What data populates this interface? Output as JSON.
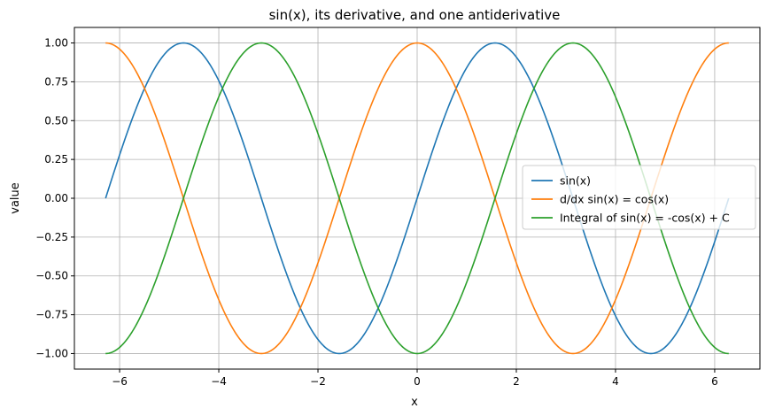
{
  "chart_data": {
    "type": "line",
    "title": "sin(x), its derivative, and one antiderivative",
    "xlabel": "x",
    "ylabel": "value",
    "xlim": [
      -6.912,
      6.912
    ],
    "ylim": [
      -1.1,
      1.1
    ],
    "xticks": [
      -6,
      -4,
      -2,
      0,
      2,
      4,
      6
    ],
    "xtick_labels": [
      "−6",
      "−4",
      "−2",
      "0",
      "2",
      "4",
      "6"
    ],
    "yticks": [
      -1.0,
      -0.75,
      -0.5,
      -0.25,
      0.0,
      0.25,
      0.5,
      0.75,
      1.0
    ],
    "ytick_labels": [
      "−1.00",
      "−0.75",
      "−0.50",
      "−0.25",
      "0.00",
      "0.25",
      "0.50",
      "0.75",
      "1.00"
    ],
    "grid": true,
    "legend_position": "center-right",
    "x_range": [
      -6.283,
      6.283
    ],
    "series": [
      {
        "name": "sin(x)",
        "color": "#1f77b4",
        "points": [
          [
            -6.283,
            0.0
          ],
          [
            -5.498,
            0.707
          ],
          [
            -4.712,
            1.0
          ],
          [
            -3.927,
            0.707
          ],
          [
            -3.142,
            0.0
          ],
          [
            -2.356,
            -0.707
          ],
          [
            -1.571,
            -1.0
          ],
          [
            -0.785,
            -0.707
          ],
          [
            0.0,
            0.0
          ],
          [
            0.785,
            0.707
          ],
          [
            1.571,
            1.0
          ],
          [
            2.356,
            0.707
          ],
          [
            3.142,
            0.0
          ],
          [
            3.927,
            -0.707
          ],
          [
            4.712,
            -1.0
          ],
          [
            5.498,
            -0.707
          ],
          [
            6.283,
            0.0
          ]
        ]
      },
      {
        "name": "d/dx sin(x) = cos(x)",
        "color": "#ff7f0e",
        "points": [
          [
            -6.283,
            1.0
          ],
          [
            -5.498,
            0.707
          ],
          [
            -4.712,
            0.0
          ],
          [
            -3.927,
            -0.707
          ],
          [
            -3.142,
            -1.0
          ],
          [
            -2.356,
            -0.707
          ],
          [
            -1.571,
            0.0
          ],
          [
            -0.785,
            0.707
          ],
          [
            0.0,
            1.0
          ],
          [
            0.785,
            0.707
          ],
          [
            1.571,
            0.0
          ],
          [
            2.356,
            -0.707
          ],
          [
            3.142,
            -1.0
          ],
          [
            3.927,
            -0.707
          ],
          [
            4.712,
            0.0
          ],
          [
            5.498,
            0.707
          ],
          [
            6.283,
            1.0
          ]
        ]
      },
      {
        "name": "Integral of sin(x) = -cos(x) + C",
        "color": "#2ca02c",
        "points": [
          [
            -6.283,
            -1.0
          ],
          [
            -5.498,
            -0.707
          ],
          [
            -4.712,
            0.0
          ],
          [
            -3.927,
            0.707
          ],
          [
            -3.142,
            1.0
          ],
          [
            -2.356,
            0.707
          ],
          [
            -1.571,
            0.0
          ],
          [
            -0.785,
            -0.707
          ],
          [
            0.0,
            -1.0
          ],
          [
            0.785,
            -0.707
          ],
          [
            1.571,
            0.0
          ],
          [
            2.356,
            0.707
          ],
          [
            3.142,
            1.0
          ],
          [
            3.927,
            0.707
          ],
          [
            4.712,
            0.0
          ],
          [
            5.498,
            -0.707
          ],
          [
            6.283,
            -1.0
          ]
        ]
      }
    ]
  }
}
